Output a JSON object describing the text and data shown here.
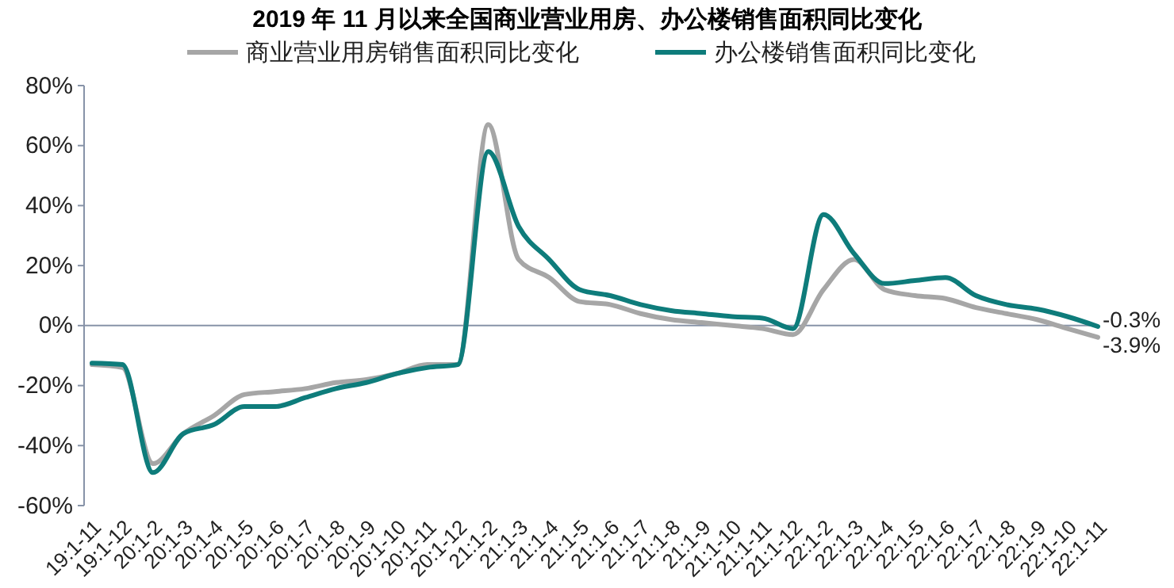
{
  "chart_data": {
    "type": "line",
    "title": "2019 年 11 月以来全国商业营业用房、办公楼销售面积同比变化",
    "categories": [
      "19:1-11",
      "19:1-12",
      "20:1-2",
      "20:1-3",
      "20:1-4",
      "20:1-5",
      "20:1-6",
      "20:1-7",
      "20:1-8",
      "20:1-9",
      "20:1-10",
      "20:1-11",
      "20:1-12",
      "21:1-2",
      "21:1-3",
      "21:1-4",
      "21:1-5",
      "21:1-6",
      "21:1-7",
      "21:1-8",
      "21:1-9",
      "21:1-10",
      "21:1-11",
      "21:1-12",
      "22:1-2",
      "22:1-3",
      "22:1-4",
      "22:1-5",
      "22:1-6",
      "22:1-7",
      "22:1-8",
      "22:1-9",
      "22:1-10",
      "22:1-11"
    ],
    "series": [
      {
        "name": "商业营业用房销售面积同比变化",
        "color": "#a6a6a6",
        "values": [
          -13,
          -14,
          -46,
          -36,
          -30,
          -23,
          -22,
          -21,
          -19,
          -18,
          -16,
          -13,
          -13,
          67,
          22,
          16,
          8,
          7,
          4,
          2,
          1,
          0,
          -1,
          -3,
          12,
          22,
          12,
          10,
          9,
          6,
          4,
          2,
          -1,
          -3.9
        ],
        "value_labels": [
          null,
          null,
          null,
          null,
          null,
          null,
          null,
          null,
          null,
          null,
          null,
          null,
          null,
          null,
          null,
          null,
          null,
          null,
          null,
          null,
          null,
          null,
          null,
          null,
          null,
          null,
          null,
          null,
          null,
          null,
          null,
          null,
          null,
          "-3.9%"
        ]
      },
      {
        "name": "办公楼销售面积同比变化",
        "color": "#0e7c7b",
        "values": [
          -12.5,
          -13,
          -49,
          -36,
          -33,
          -27,
          -27,
          -24,
          -21,
          -19,
          -16,
          -14,
          -13,
          58,
          33,
          22,
          12,
          10,
          7,
          5,
          4,
          3,
          2.5,
          -1,
          37,
          24,
          14,
          15,
          16,
          10,
          7,
          5.5,
          3,
          -0.3
        ],
        "value_labels": [
          null,
          null,
          null,
          null,
          null,
          null,
          null,
          null,
          null,
          null,
          null,
          null,
          null,
          null,
          null,
          null,
          null,
          null,
          null,
          null,
          null,
          null,
          null,
          null,
          null,
          null,
          null,
          null,
          null,
          null,
          null,
          null,
          null,
          "-0.3%"
        ]
      }
    ],
    "ylim": [
      -60,
      80
    ],
    "yticks": [
      {
        "value": -60,
        "label": "-60%"
      },
      {
        "value": -40,
        "label": "-40%"
      },
      {
        "value": -20,
        "label": "-20%"
      },
      {
        "value": 0,
        "label": "0%"
      },
      {
        "value": 20,
        "label": "20%"
      },
      {
        "value": 40,
        "label": "40%"
      },
      {
        "value": 60,
        "label": "60%"
      },
      {
        "value": 80,
        "label": "80%"
      }
    ],
    "ref_lines": [
      {
        "axis": "y",
        "value": 0,
        "color": "#8793a8"
      }
    ],
    "grid": false,
    "legend": "top",
    "marker": "none",
    "line_style": "solid"
  }
}
